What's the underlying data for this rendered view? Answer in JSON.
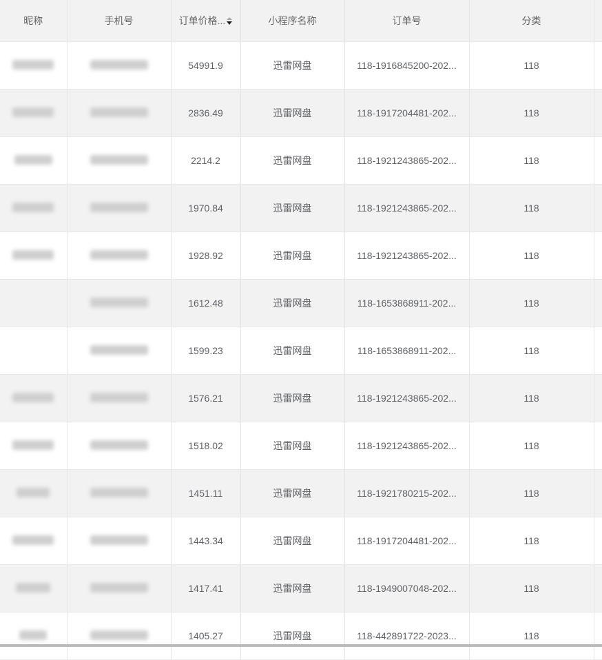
{
  "columns": [
    "昵称",
    "手机号",
    "订单价格...",
    "小程序名称",
    "订单号",
    "分类"
  ],
  "sort_column": "订单价格...",
  "rows": [
    {
      "price": "54991.9",
      "app": "迅雷网盘",
      "order": "118-1916845200-202...",
      "category": "118"
    },
    {
      "price": "2836.49",
      "app": "迅雷网盘",
      "order": "118-1917204481-202...",
      "category": "118"
    },
    {
      "price": "2214.2",
      "app": "迅雷网盘",
      "order": "118-1921243865-202...",
      "category": "118"
    },
    {
      "price": "1970.84",
      "app": "迅雷网盘",
      "order": "118-1921243865-202...",
      "category": "118"
    },
    {
      "price": "1928.92",
      "app": "迅雷网盘",
      "order": "118-1921243865-202...",
      "category": "118"
    },
    {
      "price": "1612.48",
      "app": "迅雷网盘",
      "order": "118-1653868911-202...",
      "category": "118"
    },
    {
      "price": "1599.23",
      "app": "迅雷网盘",
      "order": "118-1653868911-202...",
      "category": "118"
    },
    {
      "price": "1576.21",
      "app": "迅雷网盘",
      "order": "118-1921243865-202...",
      "category": "118"
    },
    {
      "price": "1518.02",
      "app": "迅雷网盘",
      "order": "118-1921243865-202...",
      "category": "118"
    },
    {
      "price": "1451.11",
      "app": "迅雷网盘",
      "order": "118-1921780215-202...",
      "category": "118"
    },
    {
      "price": "1443.34",
      "app": "迅雷网盘",
      "order": "118-1917204481-202...",
      "category": "118"
    },
    {
      "price": "1417.41",
      "app": "迅雷网盘",
      "order": "118-1949007048-202...",
      "category": "118"
    },
    {
      "price": "1405.27",
      "app": "迅雷网盘",
      "order": "118-442891722-2023...",
      "category": "118"
    }
  ]
}
